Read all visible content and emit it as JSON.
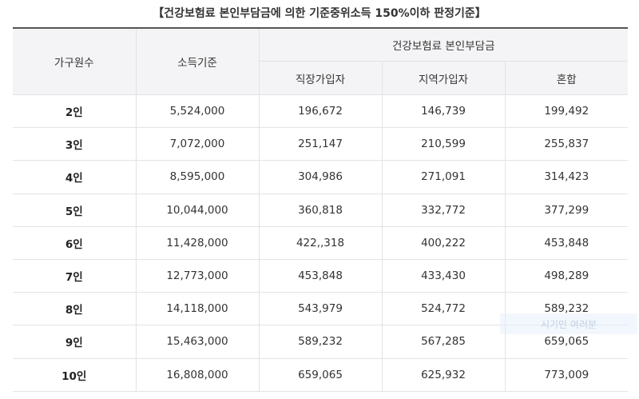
{
  "caption": "【건강보험료 본인부담금에 의한 기준중위소득 150%이하 판정기준】",
  "headers": {
    "household": "가구원수",
    "income": "소득기준",
    "insurance_group": "건강보험료 본인부담금",
    "employee": "직장가입자",
    "regional": "지역가입자",
    "mixed": "혼합"
  },
  "rows": [
    {
      "household": "2인",
      "income": "5,524,000",
      "employee": "196,672",
      "regional": "146,739",
      "mixed": "199,492"
    },
    {
      "household": "3인",
      "income": "7,072,000",
      "employee": "251,147",
      "regional": "210,599",
      "mixed": "255,837"
    },
    {
      "household": "4인",
      "income": "8,595,000",
      "employee": "304,986",
      "regional": "271,091",
      "mixed": "314,423"
    },
    {
      "household": "5인",
      "income": "10,044,000",
      "employee": "360,818",
      "regional": "332,772",
      "mixed": "377,299"
    },
    {
      "household": "6인",
      "income": "11,428,000",
      "employee": "422,,318",
      "regional": "400,222",
      "mixed": "453,848"
    },
    {
      "household": "7인",
      "income": "12,773,000",
      "employee": "453,848",
      "regional": "433,430",
      "mixed": "498,289"
    },
    {
      "household": "8인",
      "income": "14,118,000",
      "employee": "543,979",
      "regional": "524,772",
      "mixed": "589,232"
    },
    {
      "household": "9인",
      "income": "15,463,000",
      "employee": "589,232",
      "regional": "567,285",
      "mixed": "659,065"
    },
    {
      "household": "10인",
      "income": "16,808,000",
      "employee": "659,065",
      "regional": "625,932",
      "mixed": "773,009"
    }
  ],
  "watermark": "시기민 여러분"
}
